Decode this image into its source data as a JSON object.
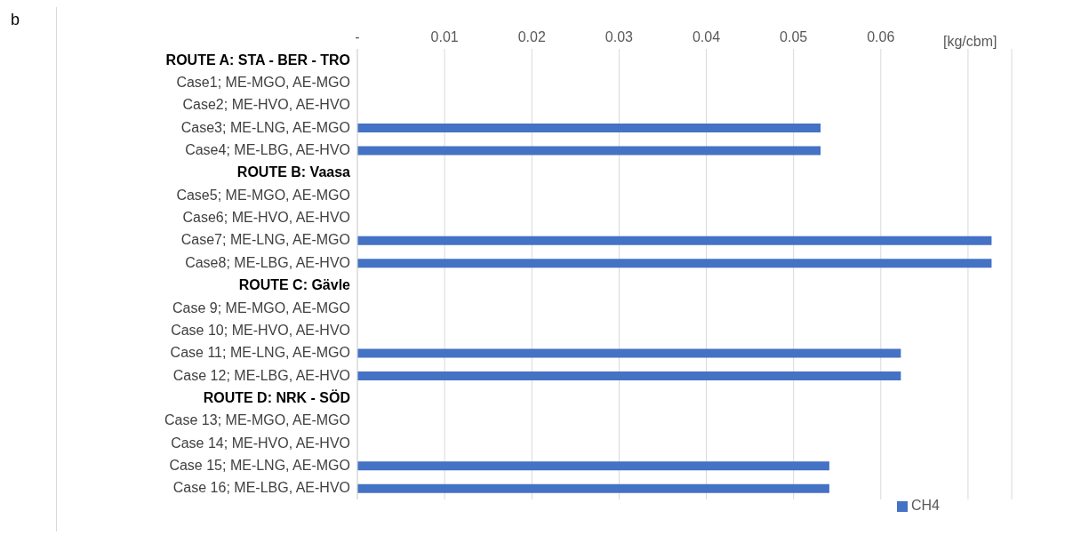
{
  "chart_data": {
    "type": "bar",
    "orientation": "horizontal",
    "xlabel": "[kg/cbm]",
    "annotations": [
      "b"
    ],
    "categories": [
      "ROUTE A: STA - BER - TRO",
      "Case1; ME-MGO, AE-MGO",
      "Case2; ME-HVO, AE-HVO",
      "Case3; ME-LNG, AE-MGO",
      "Case4; ME-LBG, AE-HVO",
      "ROUTE B: Vaasa",
      "Case5; ME-MGO, AE-MGO",
      "Case6; ME-HVO, AE-HVO",
      "Case7; ME-LNG, AE-MGO",
      "Case8; ME-LBG, AE-HVO",
      "ROUTE C: Gävle",
      "Case 9; ME-MGO, AE-MGO",
      "Case 10; ME-HVO, AE-HVO",
      "Case 11; ME-LNG, AE-MGO",
      "Case 12; ME-LBG, AE-HVO",
      "ROUTE D: NRK - SÖD",
      "Case 13; ME-MGO, AE-MGO",
      "Case 14; ME-HVO, AE-HVO",
      "Case 15; ME-LNG, AE-MGO",
      "Case 16; ME-LBG, AE-HVO"
    ],
    "series": [
      {
        "name": "CH4",
        "color": "#4472c4",
        "values": [
          null,
          0,
          0,
          0.0531,
          0.0531,
          null,
          0,
          0,
          0.0727,
          0.0727,
          null,
          0,
          0,
          0.0623,
          0.0623,
          null,
          0,
          0,
          0.0541,
          0.0541
        ]
      }
    ],
    "xlim": [
      0,
      0.075
    ],
    "xticks": [
      {
        "value": 0,
        "label": "-"
      },
      0.01,
      0.02,
      0.03,
      0.04,
      0.05,
      0.06,
      {
        "value": 0.07,
        "label": null
      }
    ],
    "grid": "x",
    "legend": "bottom right"
  }
}
